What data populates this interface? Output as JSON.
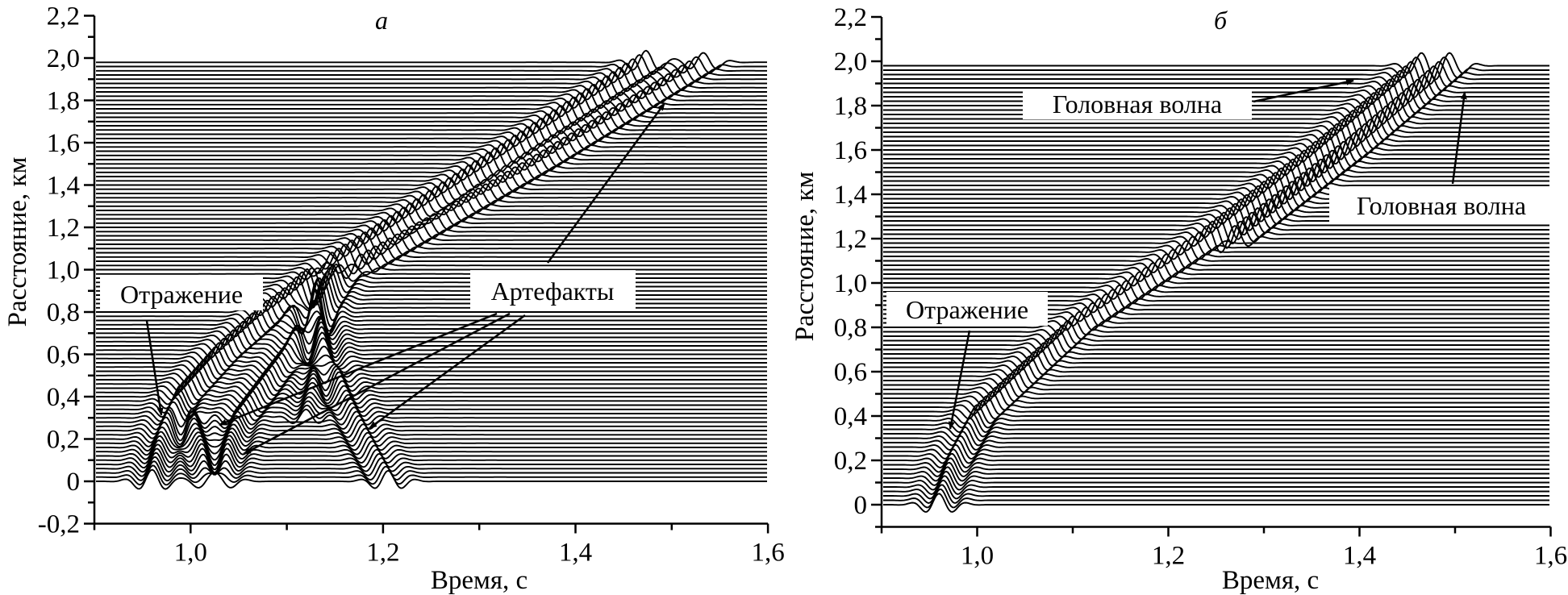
{
  "chart_data": [
    {
      "type": "line",
      "subtype": "seismic-wiggle-traces",
      "panel_label": "а",
      "xlabel": "Время, с",
      "ylabel": "Расстояние, км",
      "xlim": [
        0.9,
        1.6
      ],
      "ylim": [
        -0.2,
        2.2
      ],
      "xticks": [
        1.0,
        1.2,
        1.4,
        1.6
      ],
      "xtick_labels": [
        "1,0",
        "1,2",
        "1,4",
        "1,6"
      ],
      "xminor": [
        0.9,
        1.1,
        1.3,
        1.5
      ],
      "yticks": [
        -0.2,
        0,
        0.2,
        0.4,
        0.6,
        0.8,
        1.0,
        1.2,
        1.4,
        1.6,
        1.8,
        2.0,
        2.2
      ],
      "ytick_labels": [
        "-0,2",
        "0",
        "0,2",
        "0,4",
        "0,6",
        "0,8",
        "1,0",
        "1,2",
        "1,4",
        "1,6",
        "1,8",
        "2,0",
        "2,2"
      ],
      "yminor": [
        -0.1,
        0.1,
        0.3,
        0.5,
        0.7,
        0.9,
        1.1,
        1.3,
        1.5,
        1.7,
        1.9,
        2.1
      ],
      "trace_spacing_km": 0.02,
      "trace_range_km": [
        0,
        1.98
      ],
      "events": [
        {
          "name": "reflection-headwave",
          "amplitude": 0.055,
          "points": [
            [
              0,
              0.96
            ],
            [
              0.2,
              0.97
            ],
            [
              0.4,
              0.99
            ],
            [
              0.6,
              1.03
            ],
            [
              0.8,
              1.08
            ],
            [
              1.0,
              1.14
            ],
            [
              1.5,
              1.31
            ],
            [
              2.0,
              1.48
            ]
          ]
        },
        {
          "name": "headwave-2",
          "amplitude": 0.045,
          "points": [
            [
              1.0,
              1.17
            ],
            [
              1.5,
              1.36
            ],
            [
              2.0,
              1.54
            ]
          ]
        },
        {
          "name": "artifact-v-left",
          "amplitude": 0.05,
          "points": [
            [
              -0.08,
              1.025
            ],
            [
              0.3,
              1.0
            ]
          ]
        },
        {
          "name": "artifact-v-right",
          "amplitude": 0.05,
          "points": [
            [
              -0.08,
              1.025
            ],
            [
              0.3,
              1.05
            ],
            [
              0.6,
              1.1
            ],
            [
              1.0,
              1.16
            ]
          ]
        },
        {
          "name": "artifact-hyperbola",
          "amplitude": 0.05,
          "points": [
            [
              -0.04,
              1.21
            ],
            [
              0.3,
              1.17
            ],
            [
              0.6,
              1.14
            ],
            [
              0.8,
              1.13
            ],
            [
              1.0,
              1.15
            ]
          ]
        },
        {
          "name": "artifact-cross",
          "amplitude": 0.04,
          "points": [
            [
              0.3,
              1.12
            ],
            [
              0.6,
              1.135
            ],
            [
              0.85,
              1.13
            ]
          ]
        }
      ],
      "annotations": {
        "reflection": "Отражение",
        "artifacts": "Артефакты"
      }
    },
    {
      "type": "line",
      "subtype": "seismic-wiggle-traces",
      "panel_label": "б",
      "xlabel": "Время, с",
      "ylabel": "Расстояние, км",
      "xlim": [
        0.9,
        1.6
      ],
      "ylim": [
        -0.1,
        2.2
      ],
      "xticks": [
        1.0,
        1.2,
        1.4,
        1.6
      ],
      "xtick_labels": [
        "1,0",
        "1,2",
        "1,4",
        "1,6"
      ],
      "xminor": [
        0.9,
        1.1,
        1.3,
        1.5
      ],
      "yticks": [
        0,
        0.2,
        0.4,
        0.6,
        0.8,
        1.0,
        1.2,
        1.4,
        1.6,
        1.8,
        2.0,
        2.2
      ],
      "ytick_labels": [
        "0",
        "0,2",
        "0,4",
        "0,6",
        "0,8",
        "1,0",
        "1,2",
        "1,4",
        "1,6",
        "1,8",
        "2,0",
        "2,2"
      ],
      "yminor": [
        -0.1,
        0.1,
        0.3,
        0.5,
        0.7,
        0.9,
        1.1,
        1.3,
        1.5,
        1.7,
        1.9,
        2.1
      ],
      "trace_spacing_km": 0.02,
      "trace_range_km": [
        0,
        1.98
      ],
      "events": [
        {
          "name": "reflection-headwave",
          "amplitude": 0.05,
          "points": [
            [
              0,
              0.96
            ],
            [
              0.2,
              0.975
            ],
            [
              0.4,
              1.0
            ],
            [
              0.6,
              1.05
            ],
            [
              0.8,
              1.1
            ],
            [
              1.0,
              1.17
            ],
            [
              1.2,
              1.24
            ],
            [
              1.6,
              1.36
            ],
            [
              2.0,
              1.47
            ]
          ]
        },
        {
          "name": "headwave-2",
          "amplitude": 0.05,
          "points": [
            [
              1.2,
              1.27
            ],
            [
              1.6,
              1.39
            ],
            [
              2.0,
              1.5
            ]
          ]
        }
      ],
      "annotations": {
        "headwave_top": "Головная волна",
        "headwave_right": "Головная волна",
        "reflection": "Отражение"
      }
    }
  ]
}
